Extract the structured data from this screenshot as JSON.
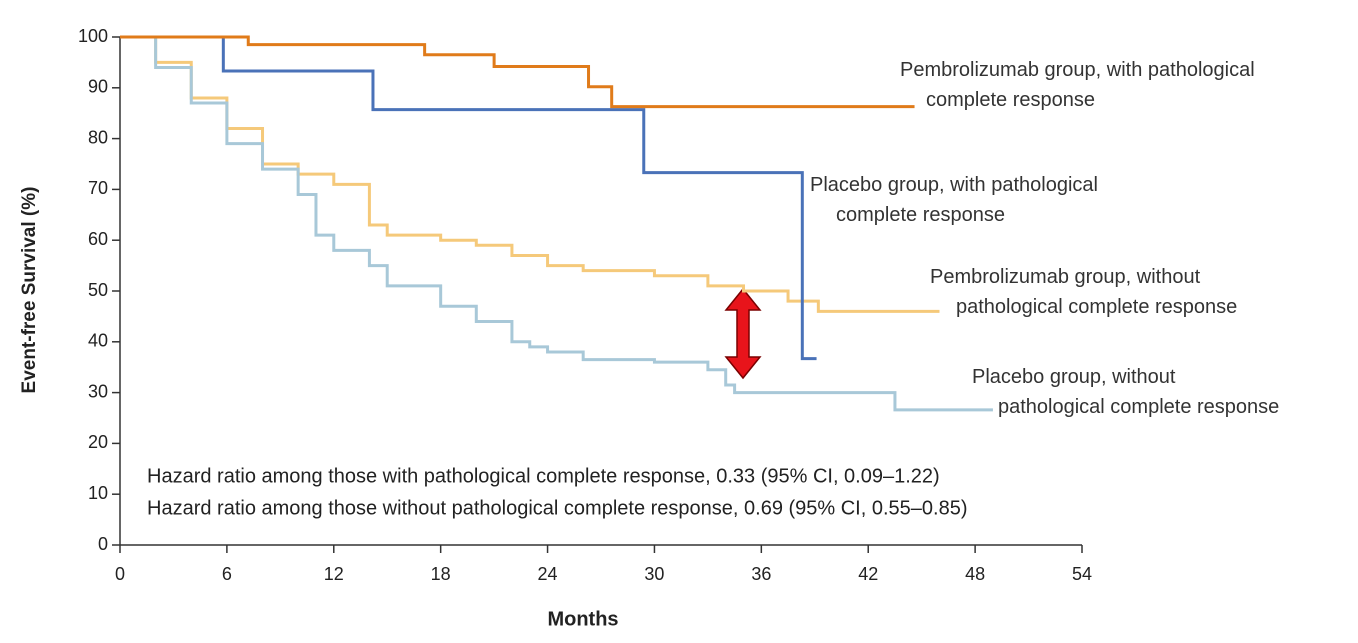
{
  "chart_data": {
    "type": "step",
    "y_label": "Event-free Survival (%)",
    "x_label": "Months",
    "xlim": [
      0,
      54
    ],
    "xticks": [
      0,
      6,
      12,
      18,
      24,
      30,
      36,
      42,
      48,
      54
    ],
    "ylim": [
      0,
      100
    ],
    "yticks": [
      0,
      10,
      20,
      30,
      40,
      50,
      60,
      70,
      80,
      90,
      100
    ],
    "annotations": [
      "Hazard ratio among those with pathological complete response, 0.33 (95% CI, 0.09–1.22)",
      "Hazard ratio among those without pathological complete response, 0.69 (95% CI, 0.55–0.85)"
    ],
    "series": [
      {
        "name": "Pembrolizumab group, with pathological complete response",
        "color": "#e07b1a",
        "x": [
          0,
          7.2,
          17.1,
          21,
          26.3,
          27.6,
          44.6
        ],
        "values": [
          100,
          98.5,
          96.5,
          94.2,
          90.2,
          86.3,
          86.3
        ]
      },
      {
        "name": "Placebo group, with pathological complete response",
        "color": "#4a72b8",
        "x": [
          0,
          5.8,
          14.2,
          29.4,
          38.3,
          39.1
        ],
        "values": [
          100,
          93.3,
          85.7,
          73.3,
          36.7,
          36.7
        ]
      },
      {
        "name": "Pembrolizumab group, without pathological complete response",
        "color": "#f5c97a",
        "x": [
          0,
          2,
          4,
          6,
          8,
          10,
          12,
          14,
          15,
          18,
          20,
          22,
          24,
          26,
          30,
          33,
          35,
          37.5,
          39.2,
          46
        ],
        "values": [
          100,
          95,
          88,
          82,
          75,
          73,
          71,
          63,
          61,
          60,
          59,
          57,
          55,
          54,
          53,
          51,
          50,
          48,
          46,
          46
        ]
      },
      {
        "name": "Placebo group, without pathological complete response",
        "color": "#a8c8d8",
        "x": [
          0,
          2,
          4,
          6,
          8,
          10,
          11,
          12,
          14,
          15,
          18,
          20,
          22,
          23,
          24,
          26,
          30,
          33,
          34,
          34.5,
          43.5,
          49
        ],
        "values": [
          100,
          94,
          87,
          79,
          74,
          69,
          61,
          58,
          55,
          51,
          47,
          44,
          40,
          39,
          38,
          36.5,
          36,
          34.5,
          31.5,
          30,
          26.6,
          26.6
        ]
      }
    ]
  }
}
